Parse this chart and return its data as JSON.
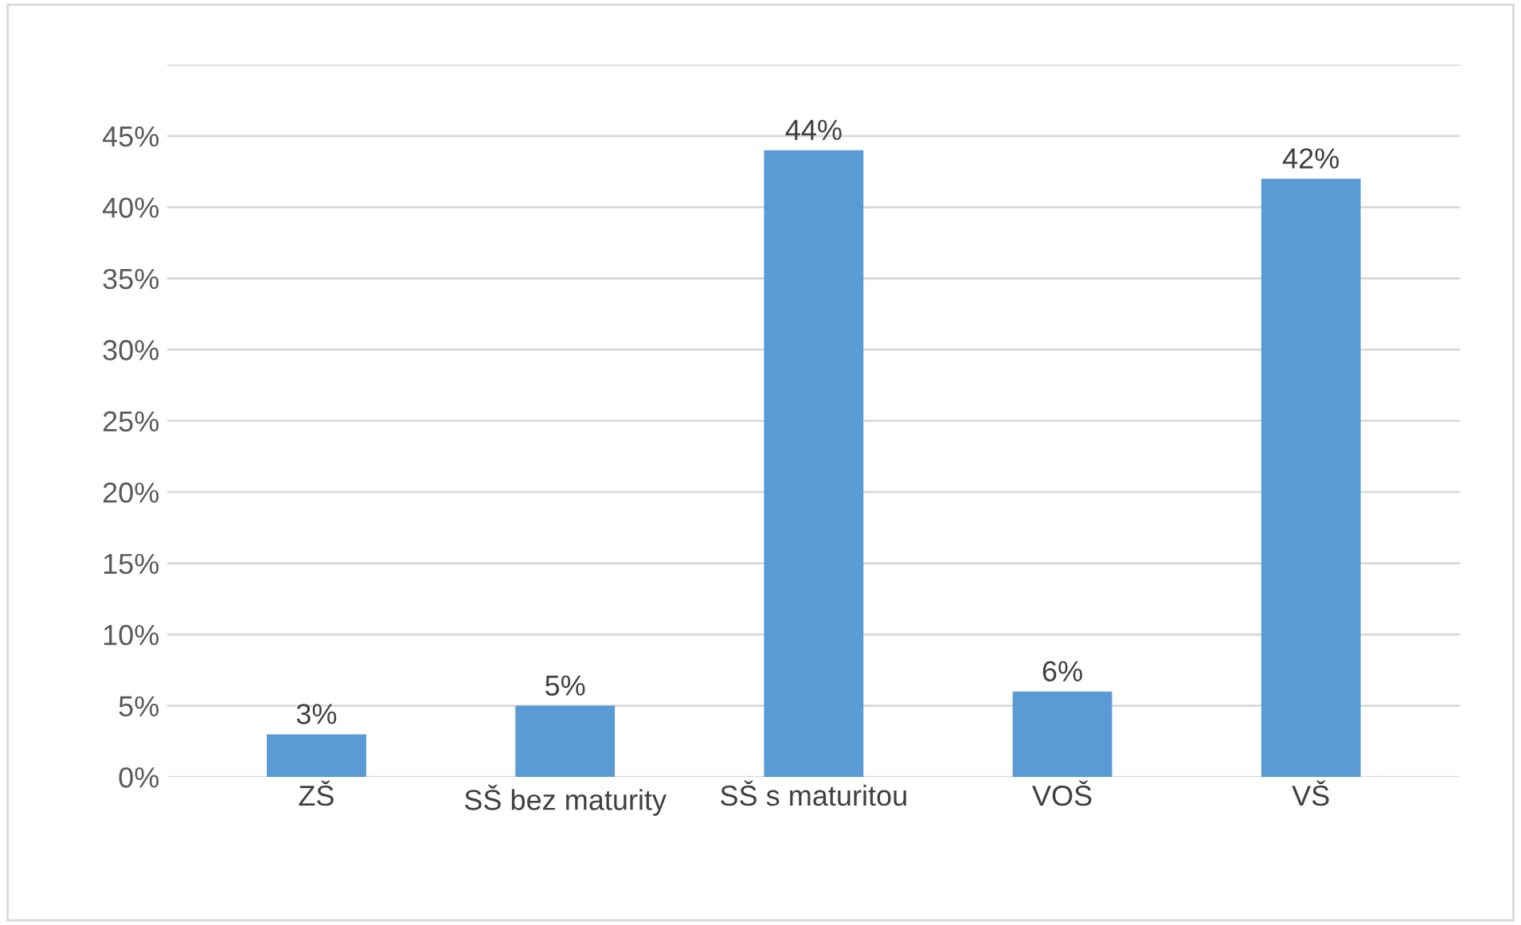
{
  "chart_data": {
    "type": "bar",
    "categories": [
      "ZŠ",
      "SŠ bez maturity",
      "SŠ s maturitou",
      "VOŠ",
      "VŠ"
    ],
    "values": [
      3,
      5,
      44,
      6,
      42
    ],
    "value_labels": [
      "3%",
      "5%",
      "44%",
      "6%",
      "42%"
    ],
    "color": "#5b9bd5",
    "ylim": [
      0,
      50
    ],
    "yticks": [
      {
        "value": 0,
        "label": "0%"
      },
      {
        "value": 5,
        "label": "5%"
      },
      {
        "value": 10,
        "label": "10%"
      },
      {
        "value": 15,
        "label": "15%"
      },
      {
        "value": 20,
        "label": "20%"
      },
      {
        "value": 25,
        "label": "25%"
      },
      {
        "value": 30,
        "label": "30%"
      },
      {
        "value": 35,
        "label": "35%"
      },
      {
        "value": 40,
        "label": "40%"
      },
      {
        "value": 45,
        "label": "45%"
      },
      {
        "value": 50,
        "label": null
      }
    ],
    "grid": "y"
  }
}
